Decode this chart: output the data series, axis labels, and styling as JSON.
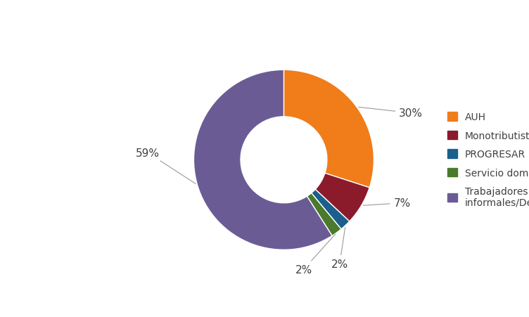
{
  "labels": [
    "AUH",
    "Monotributistas",
    "PROGRESAR",
    "Servicio doméstico",
    "Trabajadores informales/Desocupados"
  ],
  "values": [
    30,
    7,
    2,
    2,
    59
  ],
  "colors": [
    "#F07C1A",
    "#8B1A2B",
    "#1B5F8C",
    "#4A7A2B",
    "#6B5B95"
  ],
  "pct_labels": [
    "30%",
    "7%",
    "2%",
    "2%",
    "59%"
  ],
  "legend_labels": [
    "AUH",
    "Monotributistas",
    "PROGRESAR",
    "Servicio doméstico",
    "Trabajadores\ninformales/Desocupados"
  ],
  "figsize": [
    7.52,
    4.52
  ],
  "dpi": 100,
  "wedge_linewidth": 1.0,
  "wedge_edgecolor": "white"
}
